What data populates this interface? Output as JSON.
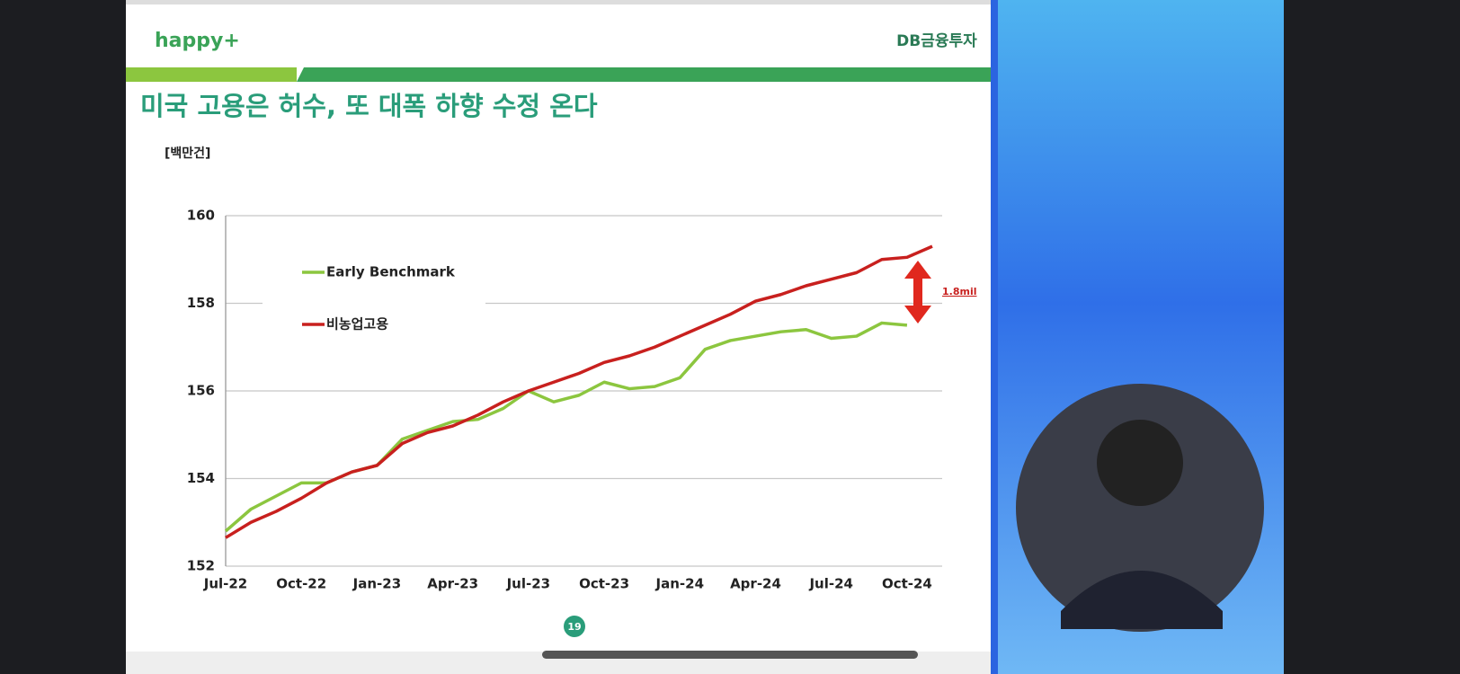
{
  "header": {
    "logo_left": "happy+",
    "logo_right": "DB금융투자"
  },
  "chart_data": {
    "type": "line",
    "title": "미국 고용은 허수, 또 대폭 하향 수정 온다",
    "y_label": "[백만건]",
    "categories": [
      "Jul-22",
      null,
      null,
      "Oct-22",
      null,
      null,
      "Jan-23",
      null,
      null,
      "Apr-23",
      null,
      null,
      "Jul-23",
      null,
      null,
      "Oct-23",
      null,
      null,
      "Jan-24",
      null,
      null,
      "Apr-24",
      null,
      null,
      "Jul-24",
      null,
      null,
      "Oct-24",
      null
    ],
    "series": [
      {
        "name": "Early Benchmark",
        "color": "#8cc63f",
        "values": [
          152.8,
          153.3,
          153.6,
          153.9,
          153.9,
          154.15,
          154.3,
          154.9,
          155.1,
          155.3,
          155.35,
          155.6,
          156.0,
          155.75,
          155.9,
          156.2,
          156.05,
          156.1,
          156.3,
          156.95,
          157.15,
          157.25,
          157.35,
          157.4,
          157.2,
          157.25,
          157.55,
          157.5,
          null
        ]
      },
      {
        "name": "비농업고용",
        "color": "#c8201e",
        "values": [
          152.65,
          153.0,
          153.25,
          153.55,
          153.9,
          154.15,
          154.3,
          154.8,
          155.05,
          155.2,
          155.45,
          155.75,
          156.0,
          156.2,
          156.4,
          156.65,
          156.8,
          157.0,
          157.25,
          157.5,
          157.75,
          158.05,
          158.2,
          158.4,
          158.55,
          158.7,
          159.0,
          159.05,
          159.3
        ]
      }
    ],
    "ylim": [
      152,
      160
    ],
    "yticks": [
      152,
      154,
      156,
      158,
      160
    ],
    "grid": true,
    "annotation": "1.8mil"
  },
  "footer": {
    "page_number": "19"
  }
}
